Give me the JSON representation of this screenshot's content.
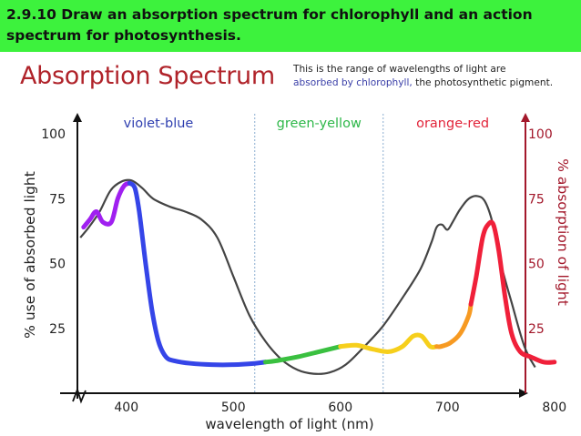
{
  "banner": {
    "line1": "2.9.10 Draw an absorption spectrum for chlorophyll and an action",
    "line2": "spectrum for photosynthesis."
  },
  "header": {
    "title": "Absorption Spectrum",
    "desc_line1": "This is the range of wavelengths of light are",
    "desc_line2": "absorbed by chlorophyll,",
    "desc_line2_tail": " the photosynthetic pigment."
  },
  "chart_data": {
    "type": "line",
    "xlabel": "wavelength of light (nm)",
    "ylabel_left": "% use of absorbed light",
    "ylabel_right": "% absorption of light",
    "xlim": [
      350,
      810
    ],
    "ylim": [
      0,
      100
    ],
    "x_ticks": [
      400,
      500,
      600,
      700,
      800
    ],
    "y_ticks": [
      25,
      50,
      75,
      100
    ],
    "band_dividers": [
      520,
      640
    ],
    "bands": [
      {
        "label": "violet-blue",
        "x_center": 430,
        "color": "#2f3fb0"
      },
      {
        "label": "green-yellow",
        "x_center": 580,
        "color": "#2fb84a"
      },
      {
        "label": "orange-red",
        "x_center": 705,
        "color": "#e2243a"
      }
    ],
    "colors": {
      "action_curve": "#444444",
      "violet": "#a020f0",
      "blue": "#3545e8",
      "green": "#3ac040",
      "yellow": "#f6cf1c",
      "orange": "#f79a22",
      "red": "#f0203a",
      "right_axis": "#a3182b"
    },
    "series": [
      {
        "points": [
          [
            357,
            60
          ],
          [
            365,
            64
          ],
          [
            375,
            70
          ],
          [
            385,
            78
          ],
          [
            395,
            81.5
          ],
          [
            405,
            82
          ],
          [
            415,
            79
          ],
          [
            425,
            75
          ],
          [
            440,
            72
          ],
          [
            455,
            70
          ],
          [
            470,
            67
          ],
          [
            485,
            60
          ],
          [
            500,
            45
          ],
          [
            515,
            30
          ],
          [
            530,
            20
          ],
          [
            545,
            13
          ],
          [
            560,
            9
          ],
          [
            575,
            7.5
          ],
          [
            590,
            8
          ],
          [
            605,
            11
          ],
          [
            620,
            17
          ],
          [
            640,
            26
          ],
          [
            660,
            38
          ],
          [
            675,
            48
          ],
          [
            685,
            58
          ],
          [
            690,
            64
          ],
          [
            695,
            65
          ],
          [
            700,
            63
          ],
          [
            705,
            66
          ],
          [
            712,
            71
          ],
          [
            720,
            75
          ],
          [
            728,
            76
          ],
          [
            735,
            74
          ],
          [
            742,
            66
          ],
          [
            750,
            50
          ],
          [
            760,
            35
          ],
          [
            772,
            18
          ],
          [
            782,
            10
          ]
        ]
      },
      {
        "points": [
          [
            360,
            64
          ],
          [
            366,
            67
          ],
          [
            372,
            70
          ],
          [
            378,
            66
          ],
          [
            386,
            66
          ],
          [
            392,
            75
          ],
          [
            398,
            80
          ],
          [
            403,
            81
          ],
          [
            408,
            79
          ],
          [
            412,
            70
          ],
          [
            418,
            50
          ],
          [
            424,
            32
          ],
          [
            430,
            20
          ],
          [
            437,
            14
          ],
          [
            445,
            12.5
          ],
          [
            460,
            11.5
          ],
          [
            480,
            11
          ],
          [
            500,
            11
          ],
          [
            520,
            11.5
          ],
          [
            540,
            12.5
          ],
          [
            560,
            14
          ],
          [
            580,
            16
          ],
          [
            600,
            18
          ],
          [
            615,
            18.5
          ],
          [
            630,
            17
          ],
          [
            645,
            16
          ],
          [
            658,
            18
          ],
          [
            668,
            22
          ],
          [
            676,
            22
          ],
          [
            684,
            18
          ],
          [
            694,
            18
          ],
          [
            703,
            19.5
          ],
          [
            712,
            23
          ],
          [
            720,
            30
          ],
          [
            727,
            45
          ],
          [
            733,
            60
          ],
          [
            738,
            65
          ],
          [
            743,
            65
          ],
          [
            748,
            55
          ],
          [
            754,
            37
          ],
          [
            760,
            23
          ],
          [
            768,
            16
          ],
          [
            778,
            14
          ],
          [
            790,
            12
          ],
          [
            800,
            12
          ]
        ],
        "segments": [
          {
            "color_key": "violet",
            "x_start": 360,
            "x_end": 403
          },
          {
            "color_key": "blue",
            "x_start": 403,
            "x_end": 530
          },
          {
            "color_key": "green",
            "x_start": 530,
            "x_end": 600
          },
          {
            "color_key": "yellow",
            "x_start": 600,
            "x_end": 690
          },
          {
            "color_key": "orange",
            "x_start": 690,
            "x_end": 722
          },
          {
            "color_key": "red",
            "x_start": 722,
            "x_end": 800
          }
        ]
      }
    ]
  }
}
